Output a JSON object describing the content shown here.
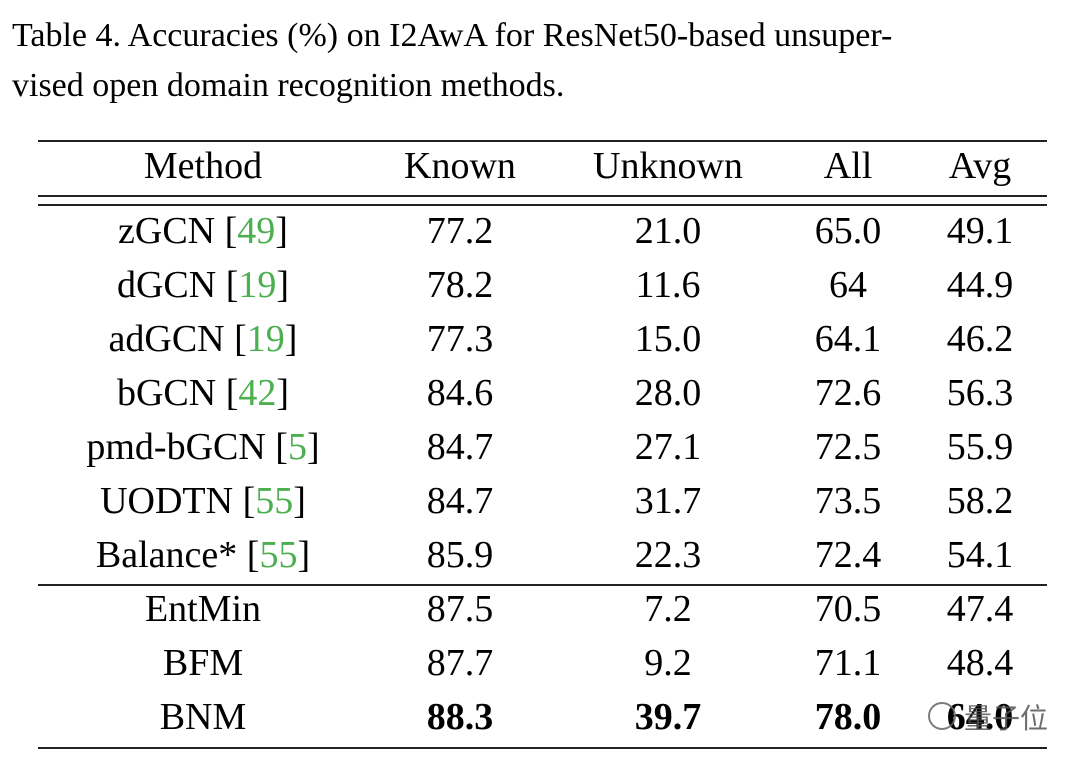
{
  "caption": [
    "Table 4. Accuracies (%) on I2AwA for ResNet50-based unsuper-",
    "vised open domain recognition methods."
  ],
  "table": {
    "cite_color": "#4caf50",
    "header": [
      "Method",
      "Known",
      "Unknown",
      "All",
      "Avg"
    ],
    "groups": [
      {
        "rows": [
          {
            "method": [
              "zGCN [",
              "49",
              "]"
            ],
            "values": [
              "77.2",
              "21.0",
              "65.0",
              "49.1"
            ]
          },
          {
            "method": [
              "dGCN [",
              "19",
              "]"
            ],
            "values": [
              "78.2",
              "11.6",
              "64",
              "44.9"
            ]
          },
          {
            "method": [
              "adGCN [",
              "19",
              "]"
            ],
            "values": [
              "77.3",
              "15.0",
              "64.1",
              "46.2"
            ]
          },
          {
            "method": [
              "bGCN [",
              "42",
              "]"
            ],
            "values": [
              "84.6",
              "28.0",
              "72.6",
              "56.3"
            ]
          },
          {
            "method": [
              "pmd-bGCN [",
              "5",
              "]"
            ],
            "values": [
              "84.7",
              "27.1",
              "72.5",
              "55.9"
            ]
          },
          {
            "method": [
              "UODTN [",
              "55",
              "]"
            ],
            "values": [
              "84.7",
              "31.7",
              "73.5",
              "58.2"
            ]
          },
          {
            "method": [
              "Balance* [",
              "55",
              "]"
            ],
            "values": [
              "85.9",
              "22.3",
              "72.4",
              "54.1"
            ]
          }
        ]
      },
      {
        "rows": [
          {
            "method": [
              "EntMin"
            ],
            "values": [
              "87.5",
              "7.2",
              "70.5",
              "47.4"
            ]
          },
          {
            "method": [
              "BFM"
            ],
            "values": [
              "87.7",
              "9.2",
              "71.1",
              "48.4"
            ]
          },
          {
            "method": [
              "BNM"
            ],
            "values": [
              "88.3",
              "39.7",
              "78.0",
              "64.0"
            ],
            "bold_values": true
          }
        ]
      }
    ]
  },
  "watermark": "量子位"
}
